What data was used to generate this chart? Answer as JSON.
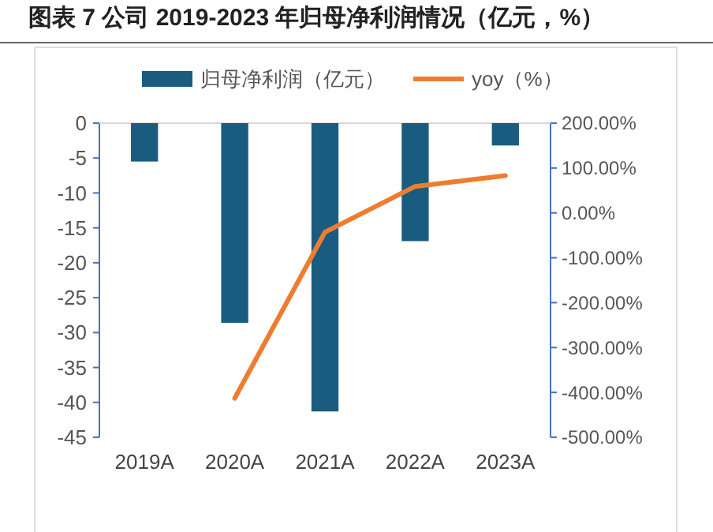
{
  "chart_data": {
    "type": "bar",
    "title": "图表 7 公司 2019-2023 年归母净利润情况（亿元，%）",
    "categories": [
      "2019A",
      "2020A",
      "2021A",
      "2022A",
      "2023A"
    ],
    "series": [
      {
        "name": "归母净利润（亿元）",
        "color": "#1a5c7f",
        "values": [
          -5.5,
          -28.6,
          -41.3,
          -16.9,
          -3.2
        ]
      },
      {
        "name": "yoy（%）",
        "type": "line",
        "axis": "y2",
        "color": "#ed7d31",
        "values": [
          null,
          -413,
          -43,
          59,
          83
        ]
      }
    ],
    "ylim": [
      -45,
      0
    ],
    "yticks": [
      0,
      -5,
      -10,
      -15,
      -20,
      -25,
      -30,
      -35,
      -40,
      -45
    ],
    "y2lim": [
      -500,
      200
    ],
    "y2ticks": [
      {
        "value": 200,
        "label": "200.00%"
      },
      {
        "value": 100,
        "label": "100.00%"
      },
      {
        "value": 0,
        "label": "0.00%"
      },
      {
        "value": -100,
        "label": "-100.00%"
      },
      {
        "value": -200,
        "label": "-200.00%"
      },
      {
        "value": -300,
        "label": "-300.00%"
      },
      {
        "value": -400,
        "label": "-400.00%"
      },
      {
        "value": -500,
        "label": "-500.00%"
      }
    ],
    "legend": "top"
  }
}
